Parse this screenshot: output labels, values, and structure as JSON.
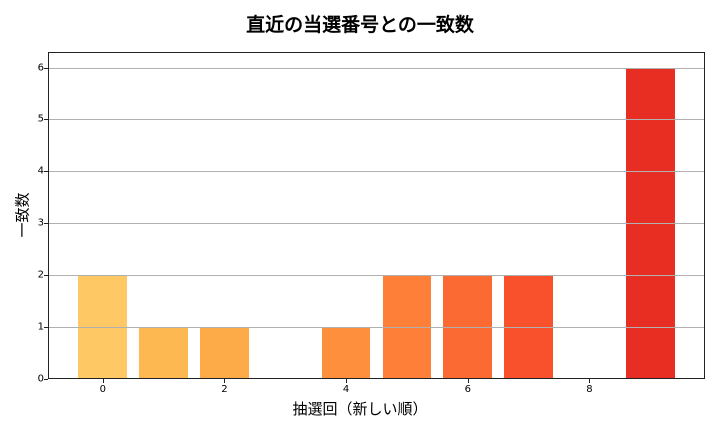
{
  "chart_data": {
    "type": "bar",
    "title": "直近の当選番号との一致数",
    "xlabel": "抽選回（新しい順）",
    "ylabel": "一致数",
    "categories": [
      0,
      1,
      2,
      3,
      4,
      5,
      6,
      7,
      8,
      9
    ],
    "values": [
      2,
      1,
      1,
      0,
      1,
      2,
      2,
      2,
      0,
      6
    ],
    "colors": [
      "#fec965",
      "#feb852",
      "#fdaa48",
      "#fd9c42",
      "#fd8f3d",
      "#fd7f38",
      "#fa6a32",
      "#f8512c",
      "#f03b26",
      "#e82e22"
    ],
    "xticks": [
      0,
      2,
      4,
      6,
      8
    ],
    "yticks": [
      0,
      1,
      2,
      3,
      4,
      5,
      6
    ],
    "xlim": [
      -0.9,
      9.9
    ],
    "ylim": [
      0,
      6.3
    ],
    "grid": "y",
    "legend": null
  }
}
